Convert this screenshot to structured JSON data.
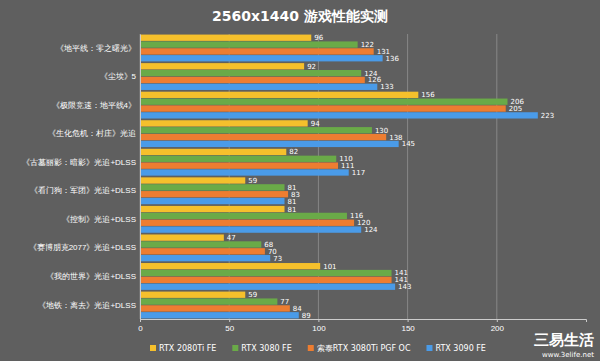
{
  "chart_data": {
    "type": "bar",
    "orientation": "horizontal",
    "title": "2560x1440 游戏性能实测",
    "categories": [
      "《地平线：零之曙光》",
      "《尘埃》5",
      "《极限竞速：地平线4》",
      "《生化危机：村庄》光追",
      "《古墓丽影：暗影》光追+DLSS",
      "《看门狗：军团》光追+DLSS",
      "《控制》光追+DLSS",
      "《赛博朋克2077》光追+DLSS",
      "《我的世界》光追+DLSS",
      "《地铁：离去》光追+DLSS"
    ],
    "series": [
      {
        "name": "RTX 2080Ti FE",
        "color": "#f5c02c",
        "values": [
          96,
          92,
          156,
          94,
          82,
          59,
          81,
          47,
          101,
          59
        ]
      },
      {
        "name": "RTX 3080 FE",
        "color": "#6aaa48",
        "values": [
          122,
          124,
          206,
          130,
          110,
          81,
          116,
          68,
          141,
          77
        ]
      },
      {
        "name": "索泰RTX 3080Ti PGF OC",
        "color": "#ed7d31",
        "values": [
          131,
          126,
          205,
          138,
          111,
          83,
          120,
          70,
          141,
          84
        ]
      },
      {
        "name": "RTX 3090 FE",
        "color": "#4a9be8",
        "values": [
          136,
          133,
          223,
          145,
          117,
          81,
          124,
          73,
          143,
          89
        ]
      }
    ],
    "xlim": [
      0,
      250
    ],
    "xticks": [
      0,
      50,
      100,
      150,
      200
    ],
    "grid": true,
    "data_labels": true,
    "legend": "bottom",
    "annotations": [
      "三易生活",
      "www.3elife.net"
    ]
  }
}
